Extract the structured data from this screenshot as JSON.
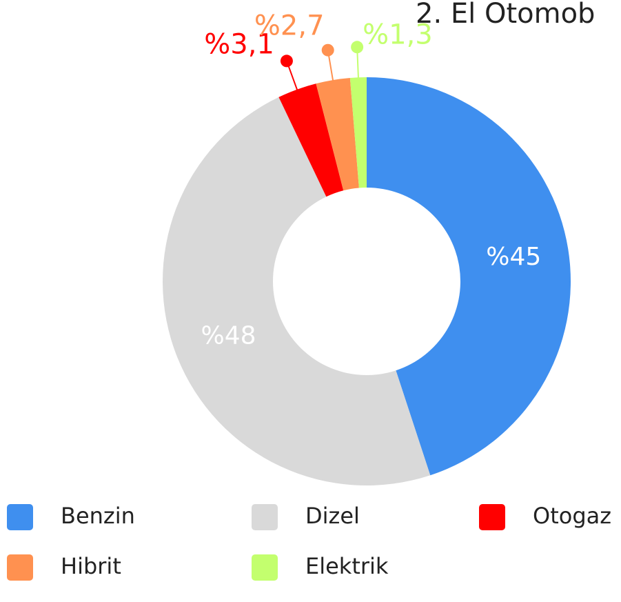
{
  "chart_data": {
    "type": "donut",
    "title": "2. El Otomob",
    "categories": [
      "Benzin",
      "Dizel",
      "Otogaz",
      "Hibrit",
      "Elektrik"
    ],
    "values": [
      45,
      48,
      3.1,
      2.7,
      1.3
    ],
    "value_labels": [
      "%45",
      "%48",
      "%3,1",
      "%2,7",
      "%1,3"
    ],
    "colors": [
      "#3f8fef",
      "#d9d9d9",
      "#ff0000",
      "#ff9150",
      "#c3ff6e"
    ],
    "legend": "bottom"
  }
}
